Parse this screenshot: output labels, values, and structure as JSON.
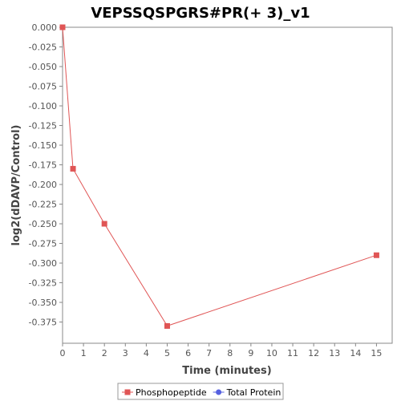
{
  "chart_data": {
    "type": "line",
    "title": "VEPSSQSPGRS#PR(+ 3)_v1",
    "xlabel": "Time (minutes)",
    "ylabel": "log2(dDAVP/Control)",
    "xlim": [
      0,
      15.75
    ],
    "ylim": [
      -0.402,
      0.0
    ],
    "x_ticks": [
      0,
      1,
      2,
      3,
      4,
      5,
      6,
      7,
      8,
      9,
      10,
      11,
      12,
      13,
      14,
      15
    ],
    "y_ticks": [
      0.0,
      -0.025,
      -0.05,
      -0.075,
      -0.1,
      -0.125,
      -0.15,
      -0.175,
      -0.2,
      -0.225,
      -0.25,
      -0.275,
      -0.3,
      -0.325,
      -0.35,
      -0.375
    ],
    "y_tick_labels": [
      "0.000",
      "-0.025",
      "-0.050",
      "-0.075",
      "-0.100",
      "-0.125",
      "-0.150",
      "-0.175",
      "-0.200",
      "-0.225",
      "-0.250",
      "-0.275",
      "-0.300",
      "-0.325",
      "-0.350",
      "-0.375"
    ],
    "grid": false,
    "legend_position": "bottom",
    "series": [
      {
        "name": "Phosphopeptide",
        "color": "#e05555",
        "marker": "square",
        "x": [
          0,
          0.5,
          2,
          5,
          15
        ],
        "y": [
          0.0,
          -0.18,
          -0.25,
          -0.38,
          -0.29
        ]
      },
      {
        "name": "Total Protein",
        "color": "#5560e0",
        "marker": "circle",
        "x": [],
        "y": []
      }
    ]
  }
}
